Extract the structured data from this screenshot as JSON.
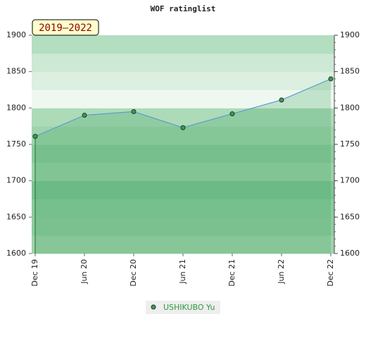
{
  "chart_data": {
    "type": "line",
    "title": "WOF ratinglist",
    "period": "2019–2022",
    "categories": [
      "Dec 19",
      "Jun 20",
      "Dec 20",
      "Jun 21",
      "Dec 21",
      "Jun 22",
      "Dec 22"
    ],
    "series": [
      {
        "name": "USHIKUBO Yu",
        "color": "#5b9bd5",
        "values": [
          1761,
          1790,
          1795,
          1773,
          1792,
          1811,
          1840
        ]
      }
    ],
    "ylim": [
      1600,
      1900
    ],
    "yticks": [
      1600,
      1650,
      1700,
      1750,
      1800,
      1850,
      1900
    ],
    "y2lim": [
      1600,
      1900
    ],
    "y2ticks": [
      1600,
      1650,
      1700,
      1750,
      1800,
      1850,
      1900
    ]
  }
}
